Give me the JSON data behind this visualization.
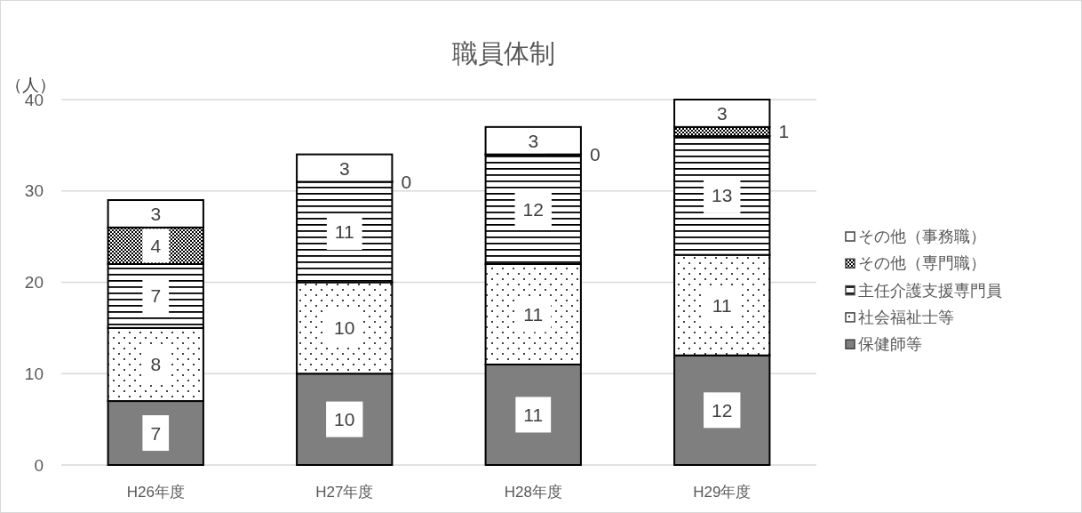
{
  "chart_data": {
    "type": "bar",
    "title": "職員体制",
    "ylabel": "（人）",
    "categories": [
      "H26年度",
      "H27年度",
      "H28年度",
      "H29年度"
    ],
    "stacked": true,
    "series": [
      {
        "name": "保健師等",
        "color": "#7f7f7f",
        "values": [
          7,
          10,
          11,
          12
        ],
        "value_labels": [
          "7",
          "10",
          "11",
          "12"
        ]
      },
      {
        "name": "社会福祉士等",
        "color": "#000000",
        "values": [
          8,
          10,
          11,
          11
        ],
        "value_labels": [
          "8",
          "10",
          "11",
          "11"
        ]
      },
      {
        "name": "主任介護支援専門員",
        "color": "#000000",
        "values": [
          7,
          11,
          12,
          13
        ],
        "value_labels": [
          "7",
          "11",
          "12",
          "13"
        ]
      },
      {
        "name": "その他（専門職）",
        "color": "#000000",
        "values": [
          4,
          0,
          0,
          1
        ],
        "value_labels": [
          "4",
          "0",
          "0",
          "1"
        ]
      },
      {
        "name": "その他（事務職）",
        "color": "#ffffff",
        "values": [
          3,
          3,
          3,
          3
        ],
        "value_labels": [
          "3",
          "3",
          "3",
          "3"
        ]
      }
    ],
    "ylim": [
      0,
      40
    ],
    "yticks": [
      0,
      10,
      20,
      30,
      40
    ],
    "grid": "y",
    "legend": "right"
  }
}
